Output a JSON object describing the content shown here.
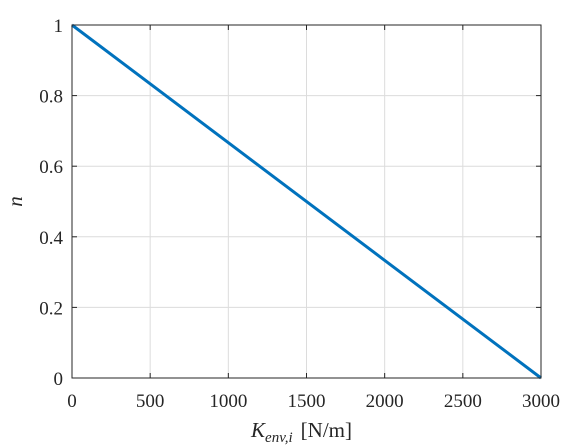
{
  "chart_data": {
    "type": "line",
    "title": "",
    "xlabel": {
      "base": "K",
      "subscript": "env,i",
      "unit": "[N/m]"
    },
    "ylabel": "n",
    "xlim": [
      0,
      3000
    ],
    "ylim": [
      0,
      1
    ],
    "x_ticks": [
      0,
      500,
      1000,
      1500,
      2000,
      2500,
      3000
    ],
    "x_tick_labels": [
      "0",
      "500",
      "1000",
      "1500",
      "2000",
      "2500",
      "3000"
    ],
    "y_ticks": [
      0,
      0.2,
      0.4,
      0.6,
      0.8,
      1
    ],
    "y_tick_labels": [
      "0",
      "0.2",
      "0.4",
      "0.6",
      "0.8",
      "1"
    ],
    "grid": true,
    "series": [
      {
        "color": "#0072BD",
        "x": [
          0,
          3000
        ],
        "y": [
          1,
          0
        ]
      }
    ]
  }
}
